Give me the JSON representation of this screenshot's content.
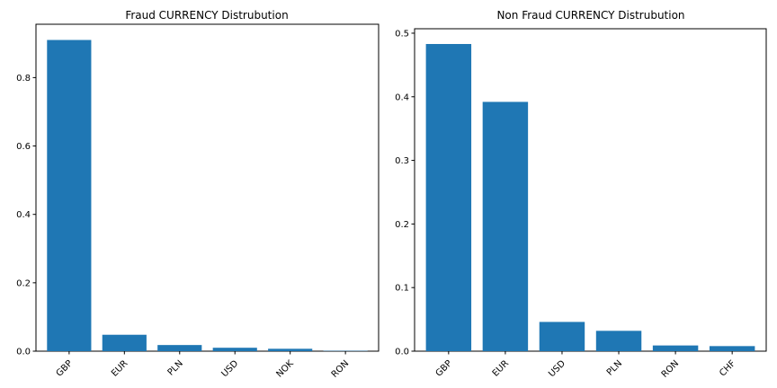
{
  "chart_data": [
    {
      "type": "bar",
      "title": "Fraud CURRENCY Distrubution",
      "categories": [
        "GBP",
        "EUR",
        "PLN",
        "USD",
        "NOK",
        "RON"
      ],
      "values": [
        0.91,
        0.048,
        0.018,
        0.01,
        0.007,
        0.001
      ],
      "ylim": [
        0,
        0.956
      ],
      "yticks": [
        0.0,
        0.2,
        0.4,
        0.6,
        0.8
      ],
      "ytick_labels": [
        "0.0",
        "0.2",
        "0.4",
        "0.6",
        "0.8"
      ],
      "xlabel": "",
      "ylabel": "",
      "grid": false,
      "bar_color": "#1f77b4"
    },
    {
      "type": "bar",
      "title": "Non Fraud CURRENCY Distrubution",
      "categories": [
        "GBP",
        "EUR",
        "USD",
        "PLN",
        "RON",
        "CHF"
      ],
      "values": [
        0.483,
        0.392,
        0.046,
        0.032,
        0.009,
        0.008
      ],
      "ylim": [
        0,
        0.507
      ],
      "yticks": [
        0.0,
        0.1,
        0.2,
        0.3,
        0.4,
        0.5
      ],
      "ytick_labels": [
        "0.0",
        "0.1",
        "0.2",
        "0.3",
        "0.4",
        "0.5"
      ],
      "xlabel": "",
      "ylabel": "",
      "grid": false,
      "bar_color": "#1f77b4"
    }
  ]
}
